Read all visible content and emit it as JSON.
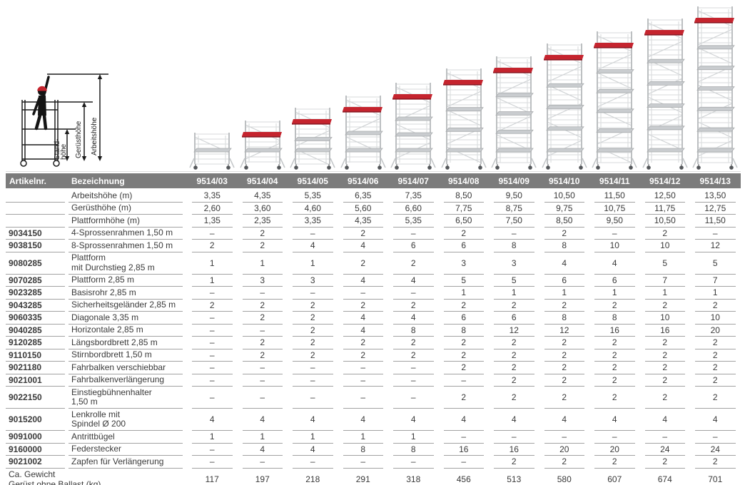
{
  "colors": {
    "header_bg": "#7c7c7c",
    "accent_red_line": "#b01e2c",
    "platform_red": "#c5242e",
    "text": "#3a3a3a"
  },
  "diagram": {
    "label_arbeitshoehe": "Arbeitshöhe",
    "label_geruesthoehe": "Gerüsthöhe",
    "label_standhoehe_line1": "Stand-",
    "label_standhoehe_line2": "höhe"
  },
  "table": {
    "header": {
      "artikelnr": "Artikelnr.",
      "bezeichnung": "Bezeichnung",
      "models": [
        "9514/03",
        "9514/04",
        "9514/05",
        "9514/06",
        "9514/07",
        "9514/08",
        "9514/09",
        "9514/10",
        "9514/11",
        "9514/12",
        "9514/13"
      ]
    },
    "rows": [
      {
        "artikelnr": "",
        "label": "Arbeitshöhe (m)",
        "values": [
          "3,35",
          "4,35",
          "5,35",
          "6,35",
          "7,35",
          "8,50",
          "9,50",
          "10,50",
          "11,50",
          "12,50",
          "13,50"
        ]
      },
      {
        "artikelnr": "",
        "label": "Gerüsthöhe (m)",
        "values": [
          "2,60",
          "3,60",
          "4,60",
          "5,60",
          "6,60",
          "7,75",
          "8,75",
          "9,75",
          "10,75",
          "11,75",
          "12,75"
        ]
      },
      {
        "artikelnr": "",
        "label": "Plattformhöhe (m)",
        "values": [
          "1,35",
          "2,35",
          "3,35",
          "4,35",
          "5,35",
          "6,50",
          "7,50",
          "8,50",
          "9,50",
          "10,50",
          "11,50"
        ]
      },
      {
        "artikelnr": "9034150",
        "label": "4-Sprossenrahmen 1,50 m",
        "values": [
          "–",
          "2",
          "–",
          "2",
          "–",
          "2",
          "–",
          "2",
          "–",
          "2",
          "–"
        ]
      },
      {
        "artikelnr": "9038150",
        "label": "8-Sprossenrahmen 1,50 m",
        "values": [
          "2",
          "2",
          "4",
          "4",
          "6",
          "6",
          "8",
          "8",
          "10",
          "10",
          "12"
        ]
      },
      {
        "artikelnr": "9080285",
        "label": "Plattform\nmit Durchstieg 2,85 m",
        "values": [
          "1",
          "1",
          "1",
          "2",
          "2",
          "3",
          "3",
          "4",
          "4",
          "5",
          "5"
        ]
      },
      {
        "artikelnr": "9070285",
        "label": "Plattform 2,85 m",
        "values": [
          "1",
          "3",
          "3",
          "4",
          "4",
          "5",
          "5",
          "6",
          "6",
          "7",
          "7"
        ]
      },
      {
        "artikelnr": "9023285",
        "label": "Basisrohr 2,85 m",
        "values": [
          "–",
          "–",
          "–",
          "–",
          "–",
          "1",
          "1",
          "1",
          "1",
          "1",
          "1"
        ]
      },
      {
        "artikelnr": "9043285",
        "label": "Sicherheitsgeländer 2,85 m",
        "values": [
          "2",
          "2",
          "2",
          "2",
          "2",
          "2",
          "2",
          "2",
          "2",
          "2",
          "2"
        ]
      },
      {
        "artikelnr": "9060335",
        "label": "Diagonale 3,35 m",
        "values": [
          "–",
          "2",
          "2",
          "4",
          "4",
          "6",
          "6",
          "8",
          "8",
          "10",
          "10"
        ]
      },
      {
        "artikelnr": "9040285",
        "label": "Horizontale 2,85 m",
        "values": [
          "–",
          "–",
          "2",
          "4",
          "8",
          "8",
          "12",
          "12",
          "16",
          "16",
          "20"
        ]
      },
      {
        "artikelnr": "9120285",
        "label": "Längsbordbrett 2,85 m",
        "values": [
          "–",
          "2",
          "2",
          "2",
          "2",
          "2",
          "2",
          "2",
          "2",
          "2",
          "2"
        ]
      },
      {
        "artikelnr": "9110150",
        "label": "Stirnbordbrett 1,50 m",
        "values": [
          "–",
          "2",
          "2",
          "2",
          "2",
          "2",
          "2",
          "2",
          "2",
          "2",
          "2"
        ]
      },
      {
        "artikelnr": "9021180",
        "label": "Fahrbalken verschiebbar",
        "values": [
          "–",
          "–",
          "–",
          "–",
          "–",
          "2",
          "2",
          "2",
          "2",
          "2",
          "2"
        ]
      },
      {
        "artikelnr": "9021001",
        "label": "Fahrbalkenverlängerung",
        "values": [
          "–",
          "–",
          "–",
          "–",
          "–",
          "–",
          "2",
          "2",
          "2",
          "2",
          "2"
        ]
      },
      {
        "artikelnr": "9022150",
        "label": "Einstiegbühnenhalter\n1,50 m",
        "values": [
          "–",
          "–",
          "–",
          "–",
          "–",
          "2",
          "2",
          "2",
          "2",
          "2",
          "2"
        ]
      },
      {
        "artikelnr": "9015200",
        "label": "Lenkrolle mit\nSpindel Ø 200",
        "values": [
          "4",
          "4",
          "4",
          "4",
          "4",
          "4",
          "4",
          "4",
          "4",
          "4",
          "4"
        ]
      },
      {
        "artikelnr": "9091000",
        "label": "Antrittbügel",
        "values": [
          "1",
          "1",
          "1",
          "1",
          "1",
          "–",
          "–",
          "–",
          "–",
          "–",
          "–"
        ]
      },
      {
        "artikelnr": "9160000",
        "label": "Federstecker",
        "values": [
          "–",
          "4",
          "4",
          "8",
          "8",
          "16",
          "16",
          "20",
          "20",
          "24",
          "24"
        ]
      },
      {
        "artikelnr": "9021002",
        "label": "Zapfen für Verlängerung",
        "values": [
          "–",
          "–",
          "–",
          "–",
          "–",
          "–",
          "2",
          "2",
          "2",
          "2",
          "2"
        ]
      }
    ],
    "footer": {
      "label": "Ca. Gewicht\nGerüst ohne Ballast (kg)",
      "values": [
        "117",
        "197",
        "218",
        "291",
        "318",
        "456",
        "513",
        "580",
        "607",
        "674",
        "701"
      ]
    }
  }
}
